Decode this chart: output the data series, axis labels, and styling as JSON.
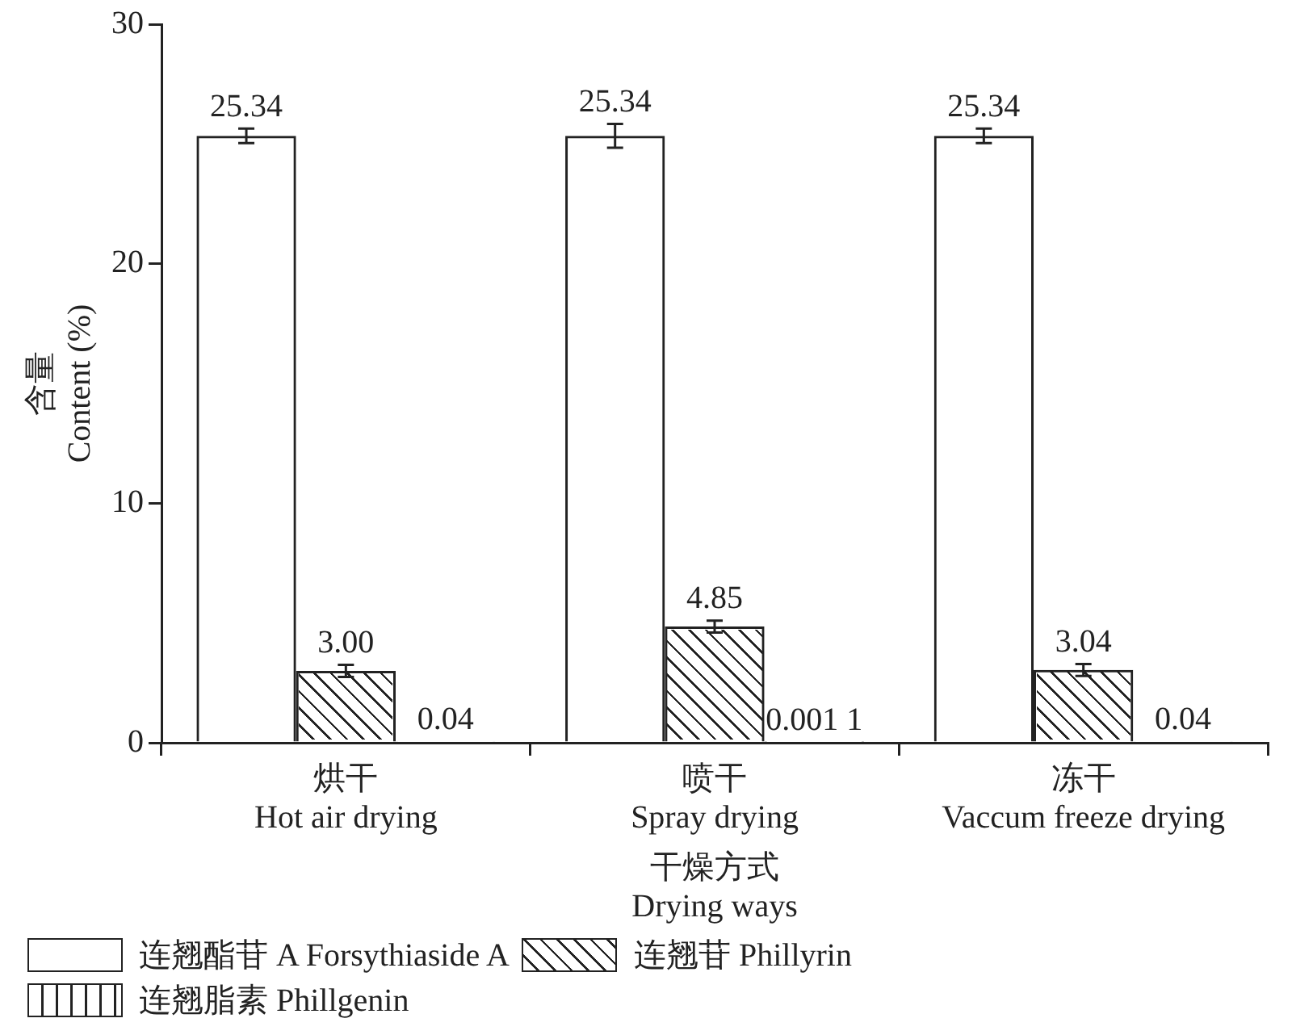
{
  "chart_data": {
    "type": "bar",
    "xlabel": "干燥方式\nDrying ways",
    "ylabel": "含量\nContent (%)",
    "categories": [
      "烘干\nHot air drying",
      "喷干\nSpray drying",
      "冻干\nVaccum freeze drying"
    ],
    "series": [
      {
        "name": "连翘酯苷 A Forsythiaside A",
        "color": "#222222",
        "values": [
          25.34,
          25.34,
          25.34
        ],
        "errors": [
          0.3,
          0.5,
          0.3
        ],
        "value_labels": [
          "25.34",
          "25.34",
          "25.34"
        ]
      },
      {
        "name": "连翘苷 Phillyrin",
        "color": "#222222",
        "values": [
          3.0,
          4.85,
          3.04
        ],
        "errors": [
          0.25,
          0.25,
          0.25
        ],
        "value_labels": [
          "3.00",
          "4.85",
          "3.04"
        ]
      },
      {
        "name": "连翘脂素 Phillgenin",
        "color": "#222222",
        "values": [
          0.04,
          0.0011,
          0.04
        ],
        "value_labels": [
          "0.04",
          "0.001 1",
          "0.04"
        ]
      }
    ],
    "ylim": [
      0,
      30
    ],
    "yticks": [
      0,
      10,
      20,
      30
    ],
    "grid": false,
    "legend": "bottom"
  }
}
